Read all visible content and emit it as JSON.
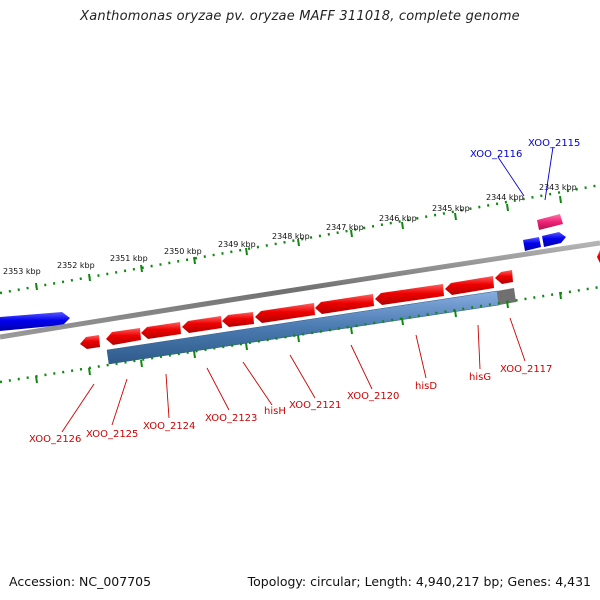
{
  "title": "Xanthomonas oryzae pv. oryzae MAFF 311018, complete genome",
  "accession": "Accession: NC_007705",
  "topology_info": "Topology: circular; Length: 4,940,217 bp; Genes: 4,431",
  "colors": {
    "forward_gene": "#0000ee",
    "forward_highlight": "#ee2277",
    "reverse_gene": "#ee0000",
    "operon_bar": "#4a7ab0",
    "tick": "#118811",
    "backbone": "#808080",
    "label_red": "#cc0000",
    "label_blue": "#0000cc"
  },
  "scale_labels": [
    "2353 kbp",
    "2352 kbp",
    "2351 kbp",
    "2350 kbp",
    "2349 kbp",
    "2348 kbp",
    "2347 kbp",
    "2346 kbp",
    "2345 kbp",
    "2344 kbp",
    "2343 kbp"
  ],
  "forward_labels": [
    "XOO_2116",
    "XOO_2115"
  ],
  "reverse_labels": [
    "XOO_2126",
    "XOO_2125",
    "XOO_2124",
    "XOO_2123",
    "hisH",
    "XOO_2121",
    "XOO_2120",
    "hisD",
    "hisG",
    "XOO_2117"
  ]
}
